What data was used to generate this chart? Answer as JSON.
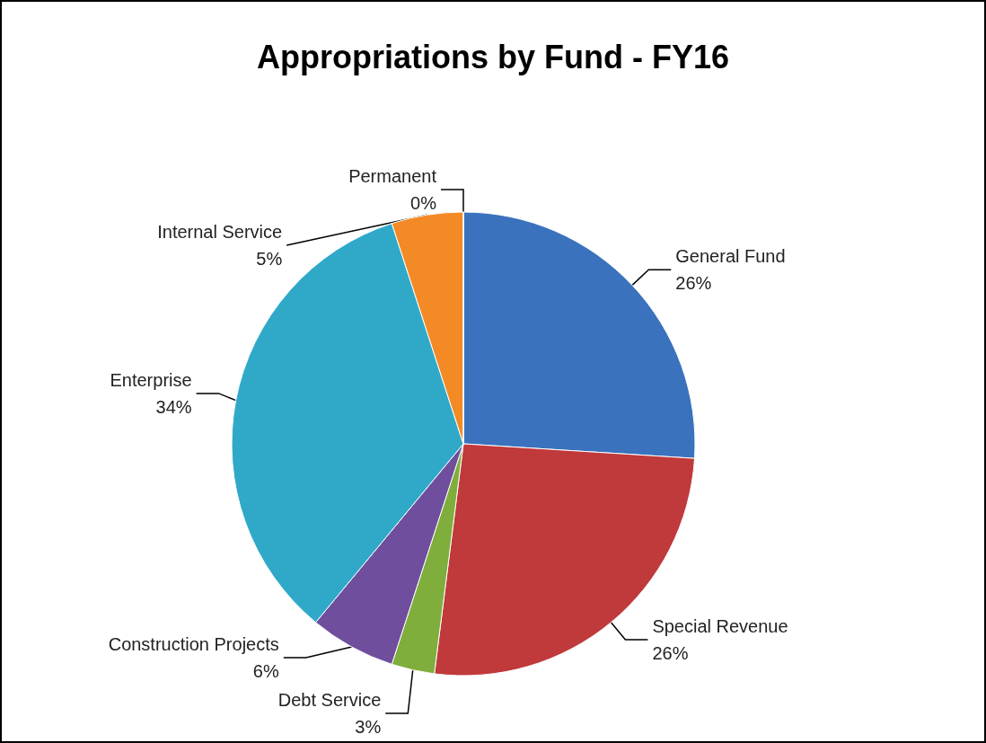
{
  "chart_data": {
    "type": "pie",
    "title": "Appropriations by Fund - FY16",
    "categories": [
      "General Fund",
      "Special Revenue",
      "Debt Service",
      "Construction Projects",
      "Enterprise",
      "Internal Service",
      "Permanent"
    ],
    "values": [
      26,
      26,
      3,
      6,
      34,
      5,
      0
    ],
    "value_labels": [
      "26%",
      "26%",
      "3%",
      "6%",
      "34%",
      "5%",
      "0%"
    ],
    "colors": [
      "#3a72bd",
      "#c0393b",
      "#7fae3c",
      "#6f4e9e",
      "#30a9c9",
      "#f48a26",
      "#4a7ebb"
    ],
    "legend": false
  }
}
